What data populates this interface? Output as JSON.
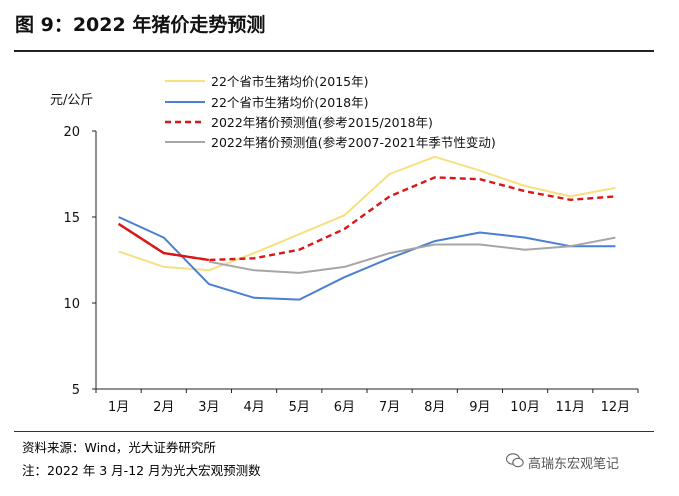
{
  "title": "图 9：2022 年猪价走势预测",
  "source": "资料来源：Wind，光大证券研究所",
  "note": "注：2022 年 3 月-12 月为光大宏观预测数",
  "watermark": "高瑞东宏观笔记",
  "chart_data": {
    "type": "line",
    "ylabel": "元/公斤",
    "ylim": [
      5,
      20
    ],
    "yticks": [
      5,
      10,
      15,
      20
    ],
    "grid": false,
    "legend_position": "top",
    "categories": [
      "1月",
      "2月",
      "3月",
      "4月",
      "5月",
      "6月",
      "7月",
      "8月",
      "9月",
      "10月",
      "11月",
      "12月"
    ],
    "series": [
      {
        "name": "22个省市生猪均价(2015年)",
        "color": "#f7e07f",
        "style": "solid",
        "values": [
          13.0,
          12.1,
          11.9,
          12.9,
          14.0,
          15.1,
          17.5,
          18.5,
          17.7,
          16.8,
          16.2,
          16.7
        ]
      },
      {
        "name": "22个省市生猪均价(2018年)",
        "color": "#4a7fd1",
        "style": "solid",
        "values": [
          15.0,
          13.8,
          11.1,
          10.3,
          10.2,
          11.5,
          12.6,
          13.6,
          14.1,
          13.8,
          13.3,
          13.3
        ]
      },
      {
        "name": "2022年猪价预测值(参考2015/2018年)",
        "color": "#d81717",
        "style": "dashed",
        "values": [
          14.6,
          12.9,
          12.5,
          12.6,
          13.1,
          14.3,
          16.2,
          17.3,
          17.2,
          16.5,
          16.0,
          16.2
        ]
      },
      {
        "name": "2022年猪价预测值(参考2007-2021年季节性变动)",
        "color": "#a6a6a6",
        "style": "solid",
        "values": [
          null,
          null,
          12.4,
          11.9,
          11.75,
          12.1,
          12.9,
          13.4,
          13.4,
          13.1,
          13.3,
          13.8
        ]
      }
    ],
    "actual_segment": {
      "color": "#d81717",
      "values": [
        14.6,
        12.9,
        12.5
      ]
    }
  }
}
